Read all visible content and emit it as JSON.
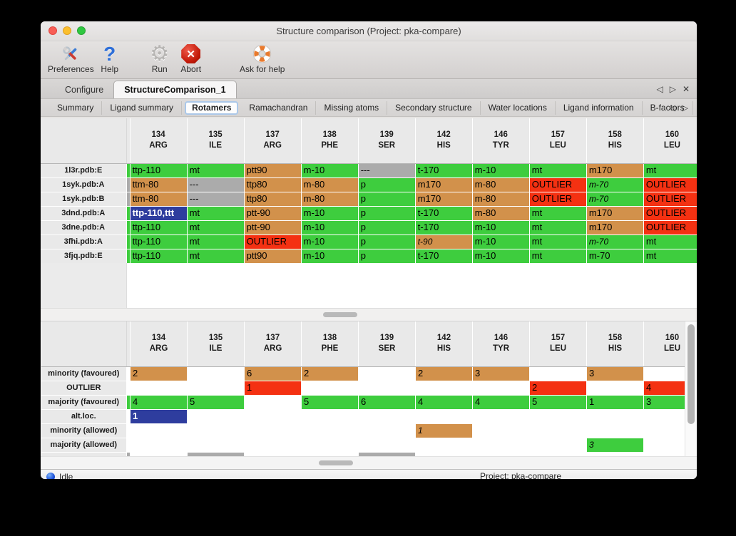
{
  "window": {
    "title": "Structure comparison (Project: pka-compare)"
  },
  "icons": {
    "nav_left": "◁",
    "nav_right": "▷",
    "close": "✕",
    "help": "?",
    "gear": "⚙",
    "abort_x": "✕"
  },
  "toolbar": {
    "items": [
      {
        "label": "Preferences",
        "icon": "tools-icon"
      },
      {
        "label": "Help",
        "icon": "help-icon"
      },
      {
        "label": "Run",
        "icon": "gear-icon"
      },
      {
        "label": "Abort",
        "icon": "abort-icon"
      },
      {
        "label": "Ask for help",
        "icon": "lifebuoy-icon"
      }
    ]
  },
  "tabs": {
    "items": [
      {
        "label": "Configure"
      },
      {
        "label": "StructureComparison_1"
      }
    ],
    "selected": "StructureComparison_1"
  },
  "subtabs": {
    "items": [
      "Summary",
      "Ligand summary",
      "Rotamers",
      "Ramachandran",
      "Missing atoms",
      "Secondary structure",
      "Water locations",
      "Ligand information",
      "B-factors"
    ],
    "selected": "Rotamers"
  },
  "colors": {
    "green": "#3ecd3e",
    "orange": "#d2914b",
    "red": "#f43112",
    "gray": "#ababab",
    "blue": "#2e3d9e"
  },
  "columns": [
    {
      "num": "134",
      "res": "ARG"
    },
    {
      "num": "135",
      "res": "ILE"
    },
    {
      "num": "137",
      "res": "ARG"
    },
    {
      "num": "138",
      "res": "PHE"
    },
    {
      "num": "139",
      "res": "SER"
    },
    {
      "num": "142",
      "res": "HIS"
    },
    {
      "num": "146",
      "res": "TYR"
    },
    {
      "num": "157",
      "res": "LEU"
    },
    {
      "num": "158",
      "res": "HIS"
    },
    {
      "num": "160",
      "res": "LEU"
    }
  ],
  "top_table": {
    "rows": [
      {
        "label": "1l3r.pdb:E",
        "sliver": "green",
        "cells": [
          {
            "t": "ttp-110",
            "c": "green"
          },
          {
            "t": "mt",
            "c": "green"
          },
          {
            "t": "ptt90",
            "c": "orange"
          },
          {
            "t": "m-10",
            "c": "green"
          },
          {
            "t": "---",
            "c": "gray"
          },
          {
            "t": "t-170",
            "c": "green"
          },
          {
            "t": "m-10",
            "c": "green"
          },
          {
            "t": "mt",
            "c": "green"
          },
          {
            "t": "m170",
            "c": "orange"
          },
          {
            "t": "mt",
            "c": "green"
          }
        ]
      },
      {
        "label": "1syk.pdb:A",
        "sliver": "gray",
        "cells": [
          {
            "t": "ttm-80",
            "c": "orange"
          },
          {
            "t": "---",
            "c": "gray"
          },
          {
            "t": "ttp80",
            "c": "orange"
          },
          {
            "t": "m-80",
            "c": "orange"
          },
          {
            "t": "p",
            "c": "green"
          },
          {
            "t": "m170",
            "c": "orange"
          },
          {
            "t": "m-80",
            "c": "orange"
          },
          {
            "t": "OUTLIER",
            "c": "red"
          },
          {
            "t": "m-70",
            "c": "green",
            "i": true
          },
          {
            "t": "OUTLIER",
            "c": "red"
          }
        ]
      },
      {
        "label": "1syk.pdb:B",
        "sliver": "gray",
        "cells": [
          {
            "t": "ttm-80",
            "c": "orange"
          },
          {
            "t": "---",
            "c": "gray"
          },
          {
            "t": "ttp80",
            "c": "orange"
          },
          {
            "t": "m-80",
            "c": "orange"
          },
          {
            "t": "p",
            "c": "green"
          },
          {
            "t": "m170",
            "c": "orange"
          },
          {
            "t": "m-80",
            "c": "orange"
          },
          {
            "t": "OUTLIER",
            "c": "red"
          },
          {
            "t": "m-70",
            "c": "green",
            "i": true
          },
          {
            "t": "OUTLIER",
            "c": "red"
          }
        ]
      },
      {
        "label": "3dnd.pdb:A",
        "sliver": "green",
        "cells": [
          {
            "t": "ttp-110,ttt",
            "c": "blue"
          },
          {
            "t": "mt",
            "c": "green"
          },
          {
            "t": "ptt-90",
            "c": "orange"
          },
          {
            "t": "m-10",
            "c": "green"
          },
          {
            "t": "p",
            "c": "green"
          },
          {
            "t": "t-170",
            "c": "green"
          },
          {
            "t": "m-80",
            "c": "orange"
          },
          {
            "t": "mt",
            "c": "green"
          },
          {
            "t": "m170",
            "c": "orange"
          },
          {
            "t": "OUTLIER",
            "c": "red"
          }
        ]
      },
      {
        "label": "3dne.pdb:A",
        "sliver": "green",
        "cells": [
          {
            "t": "ttp-110",
            "c": "green"
          },
          {
            "t": "mt",
            "c": "green"
          },
          {
            "t": "ptt-90",
            "c": "orange"
          },
          {
            "t": "m-10",
            "c": "green"
          },
          {
            "t": "p",
            "c": "green"
          },
          {
            "t": "t-170",
            "c": "green"
          },
          {
            "t": "m-10",
            "c": "green"
          },
          {
            "t": "mt",
            "c": "green"
          },
          {
            "t": "m170",
            "c": "orange"
          },
          {
            "t": "OUTLIER",
            "c": "red"
          }
        ]
      },
      {
        "label": "3fhi.pdb:A",
        "sliver": "green",
        "cells": [
          {
            "t": "ttp-110",
            "c": "green"
          },
          {
            "t": "mt",
            "c": "green"
          },
          {
            "t": "OUTLIER",
            "c": "red"
          },
          {
            "t": "m-10",
            "c": "green"
          },
          {
            "t": "p",
            "c": "green"
          },
          {
            "t": "t-90",
            "c": "orange",
            "i": true
          },
          {
            "t": "m-10",
            "c": "green"
          },
          {
            "t": "mt",
            "c": "green"
          },
          {
            "t": "m-70",
            "c": "green",
            "i": true
          },
          {
            "t": "mt",
            "c": "green"
          }
        ]
      },
      {
        "label": "3fjq.pdb:E",
        "sliver": "green",
        "cells": [
          {
            "t": "ttp-110",
            "c": "green"
          },
          {
            "t": "mt",
            "c": "green"
          },
          {
            "t": "ptt90",
            "c": "orange"
          },
          {
            "t": "m-10",
            "c": "green"
          },
          {
            "t": "p",
            "c": "green"
          },
          {
            "t": "t-170",
            "c": "green"
          },
          {
            "t": "m-10",
            "c": "green"
          },
          {
            "t": "mt",
            "c": "green"
          },
          {
            "t": "m-70",
            "c": "green"
          },
          {
            "t": "mt",
            "c": "green"
          }
        ]
      }
    ]
  },
  "bottom_table": {
    "rows": [
      {
        "label": "minority (favoured)",
        "sliver": "white",
        "cells": [
          {
            "t": "2",
            "c": "orange"
          },
          {},
          {
            "t": "6",
            "c": "orange"
          },
          {
            "t": "2",
            "c": "orange"
          },
          {},
          {
            "t": "2",
            "c": "orange"
          },
          {
            "t": "3",
            "c": "orange"
          },
          {},
          {
            "t": "3",
            "c": "orange"
          },
          {}
        ]
      },
      {
        "label": "OUTLIER",
        "sliver": "white",
        "cells": [
          {},
          {},
          {
            "t": "1",
            "c": "red"
          },
          {},
          {},
          {},
          {},
          {
            "t": "2",
            "c": "red"
          },
          {},
          {
            "t": "4",
            "c": "red"
          }
        ]
      },
      {
        "label": "majority (favoured)",
        "sliver": "green",
        "cells": [
          {
            "t": "4",
            "c": "green"
          },
          {
            "t": "5",
            "c": "green"
          },
          {},
          {
            "t": "5",
            "c": "green"
          },
          {
            "t": "6",
            "c": "green"
          },
          {
            "t": "4",
            "c": "green"
          },
          {
            "t": "4",
            "c": "green"
          },
          {
            "t": "5",
            "c": "green"
          },
          {
            "t": "1",
            "c": "green"
          },
          {
            "t": "3",
            "c": "green"
          }
        ]
      },
      {
        "label": "alt.loc.",
        "sliver": "white",
        "cells": [
          {
            "t": "1",
            "c": "blue"
          },
          {},
          {},
          {},
          {},
          {},
          {},
          {},
          {},
          {}
        ]
      },
      {
        "label": "minority (allowed)",
        "sliver": "white",
        "cells": [
          {},
          {},
          {},
          {},
          {},
          {
            "t": "1",
            "c": "orange",
            "i": true
          },
          {},
          {},
          {},
          {}
        ]
      },
      {
        "label": "majority (allowed)",
        "sliver": "white",
        "cells": [
          {},
          {},
          {},
          {},
          {},
          {},
          {},
          {},
          {
            "t": "3",
            "c": "green",
            "i": true
          },
          {}
        ]
      }
    ],
    "partial_row": {
      "sliver": "gray",
      "cells": [
        {},
        {
          "c": "gray"
        },
        {},
        {},
        {
          "c": "gray"
        },
        {},
        {},
        {},
        {},
        {}
      ]
    }
  },
  "statusbar": {
    "status": "Idle",
    "project": "Project: pka-compare"
  }
}
